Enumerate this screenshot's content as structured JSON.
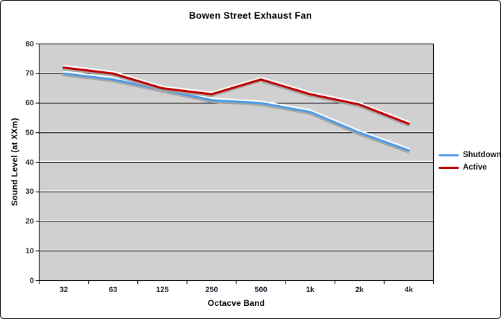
{
  "chart_data": {
    "type": "line",
    "title": "Bowen Street Exhaust Fan",
    "xlabel": "Octacve Band",
    "ylabel": "Sound Level (at XXm)",
    "categories": [
      "32",
      "63",
      "125",
      "250",
      "500",
      "1k",
      "2k",
      "4k"
    ],
    "series": [
      {
        "name": "Shutdown",
        "color": "#4D9BE6",
        "values": [
          70,
          68,
          64.5,
          61,
          60,
          57,
          50,
          44
        ]
      },
      {
        "name": "Active",
        "color": "#C00000",
        "values": [
          72,
          70,
          65,
          63,
          68,
          63,
          59.5,
          53
        ]
      }
    ],
    "ylim": [
      0,
      80
    ],
    "y_ticks": [
      0,
      10,
      20,
      30,
      40,
      50,
      60,
      70,
      80
    ],
    "grid": true,
    "legend_position": "right",
    "plot_bg": "#D0D0D0",
    "grid_color": "#000000",
    "grid_highlight_color": "#FFFFFF",
    "line_shadow_color": "#A3A3A3"
  }
}
